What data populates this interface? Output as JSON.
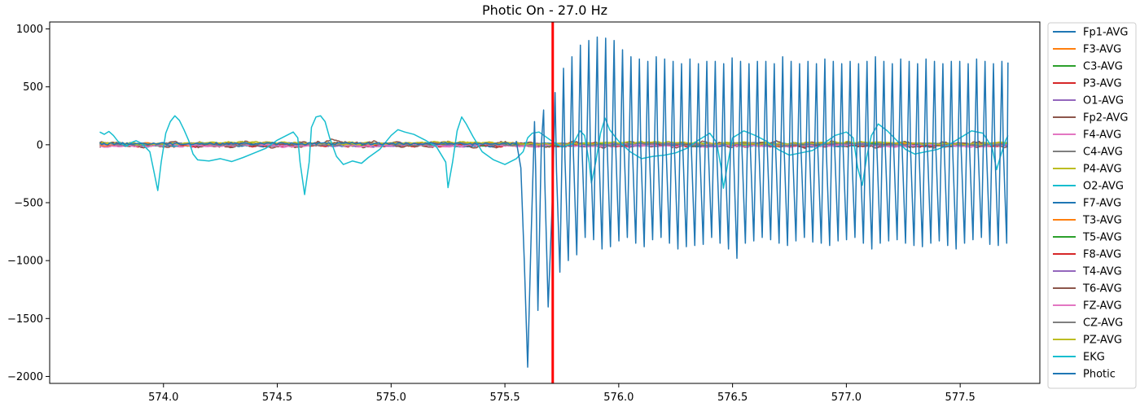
{
  "chart_data": {
    "type": "line",
    "title": "Photic On - 27.0 Hz",
    "xlabel": "",
    "ylabel": "",
    "xlim": [
      573.5,
      577.85
    ],
    "ylim": [
      -2060,
      1060
    ],
    "xticks": [
      574.0,
      574.5,
      575.0,
      575.5,
      576.0,
      576.5,
      577.0,
      577.5
    ],
    "xtick_labels": [
      "574.0",
      "574.5",
      "575.0",
      "575.5",
      "576.0",
      "576.5",
      "577.0",
      "577.5"
    ],
    "yticks": [
      1000,
      500,
      0,
      -500,
      -1000,
      -1500,
      -2000
    ],
    "ytick_labels": [
      "1000",
      "500",
      "0",
      "−500",
      "−1000",
      "−1500",
      "−2000"
    ],
    "grid": false,
    "legend_position": "outside-right",
    "marker_line": {
      "x": 575.71,
      "color": "#ff0000"
    },
    "x_range": [
      573.72,
      577.71
    ],
    "series": [
      {
        "name": "Fp1-AVG",
        "color": "#1f77b4",
        "amplitude": 15,
        "offset": 0
      },
      {
        "name": "F3-AVG",
        "color": "#ff7f0e",
        "amplitude": 12,
        "offset": 5
      },
      {
        "name": "C3-AVG",
        "color": "#2ca02c",
        "amplitude": 10,
        "offset": 2
      },
      {
        "name": "P3-AVG",
        "color": "#d62728",
        "amplitude": 14,
        "offset": -3
      },
      {
        "name": "O1-AVG",
        "color": "#9467bd",
        "amplitude": 12,
        "offset": 0
      },
      {
        "name": "Fp2-AVG",
        "color": "#8c564b",
        "amplitude": 20,
        "offset": 0
      },
      {
        "name": "F4-AVG",
        "color": "#e377c2",
        "amplitude": 12,
        "offset": -8
      },
      {
        "name": "C4-AVG",
        "color": "#7f7f7f",
        "amplitude": 10,
        "offset": 3
      },
      {
        "name": "P4-AVG",
        "color": "#bcbd22",
        "amplitude": 10,
        "offset": 12
      },
      {
        "name": "O2-AVG",
        "color": "#17becf",
        "amplitude": 12,
        "offset": 0
      },
      {
        "name": "F7-AVG",
        "color": "#1f77b4",
        "amplitude": 15,
        "offset": 0
      },
      {
        "name": "T3-AVG",
        "color": "#ff7f0e",
        "amplitude": 12,
        "offset": 4
      },
      {
        "name": "T5-AVG",
        "color": "#2ca02c",
        "amplitude": 10,
        "offset": 2
      },
      {
        "name": "F8-AVG",
        "color": "#d62728",
        "amplitude": 14,
        "offset": -2
      },
      {
        "name": "T4-AVG",
        "color": "#9467bd",
        "amplitude": 12,
        "offset": 0
      },
      {
        "name": "T6-AVG",
        "color": "#8c564b",
        "amplitude": 25,
        "offset": 2
      },
      {
        "name": "FZ-AVG",
        "color": "#e377c2",
        "amplitude": 10,
        "offset": -5
      },
      {
        "name": "CZ-AVG",
        "color": "#7f7f7f",
        "amplitude": 10,
        "offset": 4
      },
      {
        "name": "PZ-AVG",
        "color": "#bcbd22",
        "amplitude": 12,
        "offset": 14
      },
      {
        "name": "EKG",
        "color": "#17becf",
        "points": [
          [
            573.72,
            110
          ],
          [
            573.74,
            90
          ],
          [
            573.76,
            115
          ],
          [
            573.78,
            80
          ],
          [
            573.8,
            30
          ],
          [
            573.82,
            5
          ],
          [
            573.84,
            -10
          ],
          [
            573.86,
            20
          ],
          [
            573.88,
            35
          ],
          [
            573.9,
            15
          ],
          [
            573.92,
            -20
          ],
          [
            573.94,
            -60
          ],
          [
            573.96,
            -250
          ],
          [
            573.975,
            -395
          ],
          [
            573.99,
            -150
          ],
          [
            574.01,
            100
          ],
          [
            574.03,
            200
          ],
          [
            574.05,
            250
          ],
          [
            574.07,
            210
          ],
          [
            574.09,
            130
          ],
          [
            574.11,
            40
          ],
          [
            574.13,
            -80
          ],
          [
            574.15,
            -130
          ],
          [
            574.2,
            -140
          ],
          [
            574.25,
            -120
          ],
          [
            574.3,
            -145
          ],
          [
            574.35,
            -110
          ],
          [
            574.4,
            -70
          ],
          [
            574.45,
            -30
          ],
          [
            574.5,
            40
          ],
          [
            574.55,
            90
          ],
          [
            574.57,
            110
          ],
          [
            574.59,
            60
          ],
          [
            574.6,
            -150
          ],
          [
            574.62,
            -430
          ],
          [
            574.64,
            -150
          ],
          [
            574.65,
            150
          ],
          [
            574.67,
            240
          ],
          [
            574.69,
            250
          ],
          [
            574.71,
            200
          ],
          [
            574.73,
            60
          ],
          [
            574.76,
            -100
          ],
          [
            574.79,
            -170
          ],
          [
            574.83,
            -140
          ],
          [
            574.87,
            -160
          ],
          [
            574.9,
            -110
          ],
          [
            574.95,
            -40
          ],
          [
            575.0,
            80
          ],
          [
            575.03,
            130
          ],
          [
            575.06,
            110
          ],
          [
            575.1,
            90
          ],
          [
            575.15,
            40
          ],
          [
            575.2,
            -20
          ],
          [
            575.24,
            -150
          ],
          [
            575.25,
            -370
          ],
          [
            575.27,
            -150
          ],
          [
            575.29,
            120
          ],
          [
            575.31,
            240
          ],
          [
            575.33,
            180
          ],
          [
            575.36,
            70
          ],
          [
            575.4,
            -60
          ],
          [
            575.45,
            -130
          ],
          [
            575.5,
            -170
          ],
          [
            575.55,
            -120
          ],
          [
            575.58,
            -60
          ],
          [
            575.6,
            60
          ],
          [
            575.62,
            100
          ],
          [
            575.65,
            110
          ],
          [
            575.7,
            40
          ],
          [
            575.75,
            -20
          ],
          [
            575.8,
            10
          ],
          [
            575.83,
            120
          ],
          [
            575.85,
            80
          ],
          [
            575.87,
            -150
          ],
          [
            575.88,
            -330
          ],
          [
            575.9,
            -140
          ],
          [
            575.92,
            100
          ],
          [
            575.94,
            230
          ],
          [
            575.96,
            130
          ],
          [
            576.0,
            30
          ],
          [
            576.05,
            -60
          ],
          [
            576.1,
            -120
          ],
          [
            576.15,
            -100
          ],
          [
            576.2,
            -90
          ],
          [
            576.25,
            -70
          ],
          [
            576.3,
            -30
          ],
          [
            576.35,
            40
          ],
          [
            576.4,
            100
          ],
          [
            576.43,
            20
          ],
          [
            576.45,
            -200
          ],
          [
            576.46,
            -375
          ],
          [
            576.48,
            -150
          ],
          [
            576.5,
            60
          ],
          [
            576.55,
            120
          ],
          [
            576.6,
            80
          ],
          [
            576.65,
            30
          ],
          [
            576.7,
            -40
          ],
          [
            576.75,
            -90
          ],
          [
            576.8,
            -70
          ],
          [
            576.85,
            -50
          ],
          [
            576.9,
            10
          ],
          [
            576.95,
            80
          ],
          [
            577.0,
            110
          ],
          [
            577.03,
            60
          ],
          [
            577.05,
            -200
          ],
          [
            577.07,
            -350
          ],
          [
            577.09,
            -100
          ],
          [
            577.11,
            80
          ],
          [
            577.14,
            180
          ],
          [
            577.18,
            120
          ],
          [
            577.22,
            40
          ],
          [
            577.26,
            -40
          ],
          [
            577.3,
            -80
          ],
          [
            577.35,
            -60
          ],
          [
            577.4,
            -40
          ],
          [
            577.45,
            0
          ],
          [
            577.5,
            60
          ],
          [
            577.55,
            120
          ],
          [
            577.6,
            100
          ],
          [
            577.64,
            -20
          ],
          [
            577.66,
            -215
          ],
          [
            577.68,
            -80
          ],
          [
            577.7,
            40
          ],
          [
            577.71,
            80
          ]
        ]
      },
      {
        "name": "Photic",
        "color": "#1f77b4",
        "flat_until": 575.55,
        "onset_points": [
          [
            575.55,
            30
          ],
          [
            575.57,
            -200
          ],
          [
            575.585,
            -1000
          ],
          [
            575.6,
            -1920
          ],
          [
            575.615,
            -800
          ],
          [
            575.63,
            200
          ],
          [
            575.635,
            -200
          ],
          [
            575.645,
            -1430
          ],
          [
            575.66,
            0
          ],
          [
            575.67,
            300
          ],
          [
            575.675,
            -300
          ],
          [
            575.69,
            -1400
          ],
          [
            575.71,
            -400
          ]
        ],
        "frequency_hz": 27.0,
        "oscillation_start": 575.71,
        "peak_values": [
          450,
          660,
          760,
          860,
          900,
          930,
          920,
          900,
          820,
          760,
          740,
          720,
          760,
          740,
          720,
          700,
          740,
          700,
          720,
          720,
          700,
          750,
          720,
          700,
          720,
          720,
          700,
          760,
          720,
          700,
          720,
          700,
          740,
          720,
          700,
          720,
          700,
          720,
          760,
          720,
          700,
          740,
          720,
          700,
          740,
          720,
          700,
          720,
          720,
          700,
          740,
          720,
          700,
          720,
          700,
          740,
          720,
          700,
          720,
          720,
          700,
          740,
          720,
          700,
          720,
          700,
          740,
          720,
          700,
          720,
          720,
          700,
          740,
          720,
          700,
          720,
          700,
          740,
          720,
          720,
          700,
          720,
          710,
          720,
          720
        ],
        "trough_values": [
          -1100,
          -1000,
          -950,
          -800,
          -820,
          -900,
          -880,
          -830,
          -800,
          -850,
          -880,
          -820,
          -800,
          -850,
          -900,
          -880,
          -870,
          -860,
          -800,
          -850,
          -900,
          -980,
          -850,
          -830,
          -800,
          -820,
          -850,
          -870,
          -830,
          -800,
          -840,
          -850,
          -870,
          -830,
          -820,
          -800,
          -850,
          -900,
          -850,
          -830,
          -820,
          -850,
          -870,
          -880,
          -850,
          -830,
          -870,
          -900,
          -850,
          -820,
          -800,
          -860,
          -870,
          -850,
          -830,
          -1000,
          -850,
          -820,
          -800,
          -850,
          -870,
          -830,
          -820,
          -800,
          -860,
          -840,
          -830,
          -820,
          -850,
          -860,
          -840,
          -830,
          -820,
          -860,
          -870,
          -850,
          -840,
          -820,
          -830,
          -850,
          -860,
          -840,
          -830,
          -850,
          -860
        ]
      }
    ]
  }
}
